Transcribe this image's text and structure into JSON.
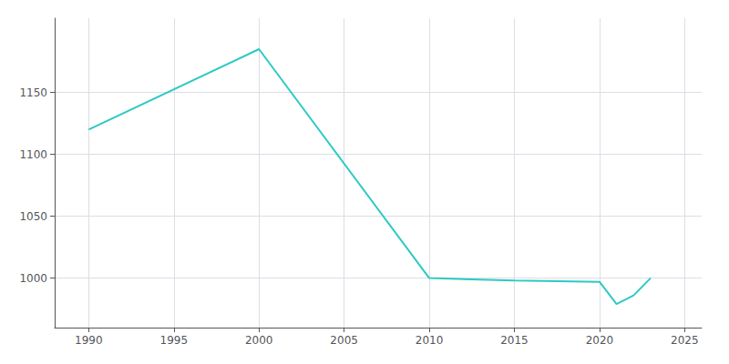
{
  "chart_data": {
    "type": "line",
    "x": [
      1990,
      2000,
      2010,
      2015,
      2020,
      2021,
      2022,
      2023
    ],
    "values": [
      1120,
      1185,
      1000,
      998,
      997,
      979,
      986,
      1000
    ],
    "color": "#2dc9c4",
    "xlim": [
      1988,
      2026
    ],
    "ylim": [
      960,
      1210
    ],
    "xticks": [
      1990,
      1995,
      2000,
      2005,
      2010,
      2015,
      2020,
      2025
    ],
    "yticks": [
      1000,
      1050,
      1100,
      1150
    ],
    "grid": true
  }
}
